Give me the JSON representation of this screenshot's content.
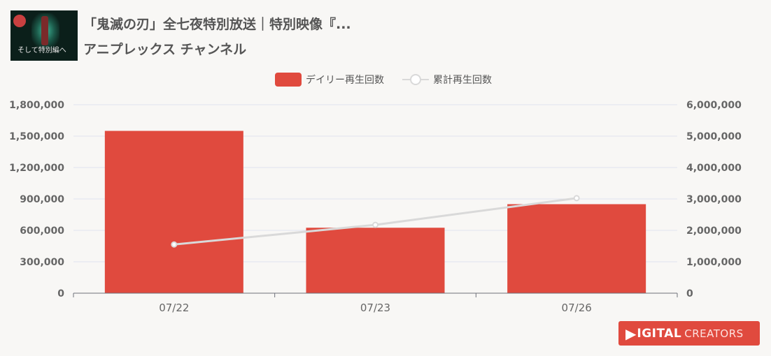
{
  "header": {
    "title": "「鬼滅の刃」全七夜特別放送｜特別映像『...",
    "channel": "アニプレックス チャンネル",
    "thumbnail_text": "そして特別編へ"
  },
  "legend": {
    "bar_label": "デイリー再生回数",
    "line_label": "累計再生回数"
  },
  "chart_data": {
    "type": "bar",
    "categories": [
      "07/22",
      "07/23",
      "07/26"
    ],
    "series": [
      {
        "name": "デイリー再生回数",
        "type": "bar",
        "axis": "left",
        "values": [
          1550000,
          625000,
          850000
        ],
        "color": "#e04a3e"
      },
      {
        "name": "累計再生回数",
        "type": "line",
        "axis": "right",
        "values": [
          1550000,
          2175000,
          3025000
        ],
        "color": "#d9d9d9"
      }
    ],
    "y_left": {
      "min": 0,
      "max": 1800000,
      "ticks": [
        "0",
        "300,000",
        "600,000",
        "900,000",
        "1,200,000",
        "1,500,000",
        "1,800,000"
      ]
    },
    "y_right": {
      "min": 0,
      "max": 6000000,
      "ticks": [
        "0",
        "1,000,000",
        "2,000,000",
        "3,000,000",
        "4,000,000",
        "5,000,000",
        "6,000,000"
      ]
    },
    "grid": true,
    "legend_position": "top-center"
  },
  "badge": {
    "part1": "IGITAL",
    "part2": "CREATORS",
    "accent": "#e04a3e"
  }
}
